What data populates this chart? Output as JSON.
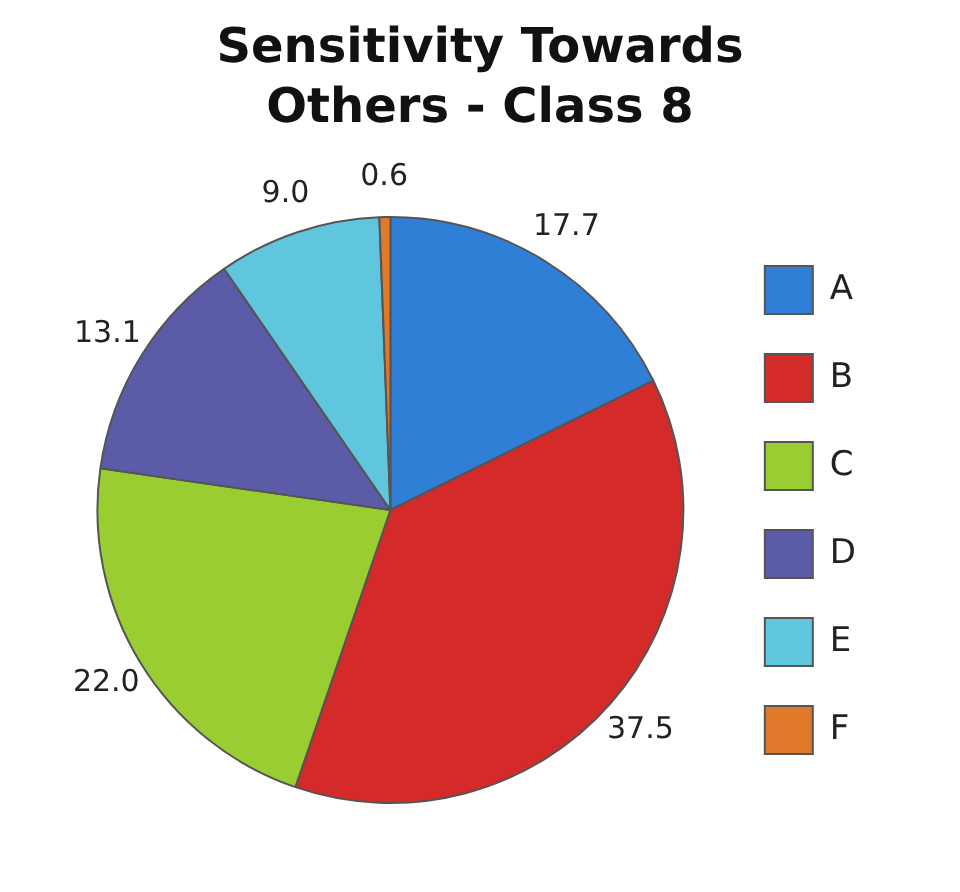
{
  "chart_data": {
    "type": "pie",
    "title": "Sensitivity Towards Others - Class 8",
    "categories": [
      "A",
      "B",
      "C",
      "D",
      "E",
      "F"
    ],
    "values": [
      17.7,
      37.5,
      22.0,
      13.1,
      9.0,
      0.6
    ],
    "colors": [
      "#2f7fd6",
      "#d42a2a",
      "#9acd32",
      "#5b5ba8",
      "#5fc6de",
      "#e07a2a"
    ],
    "value_labels": [
      "17.7",
      "37.5",
      "22.0",
      "13.1",
      "9.0",
      "0.6"
    ],
    "legend": "right"
  }
}
